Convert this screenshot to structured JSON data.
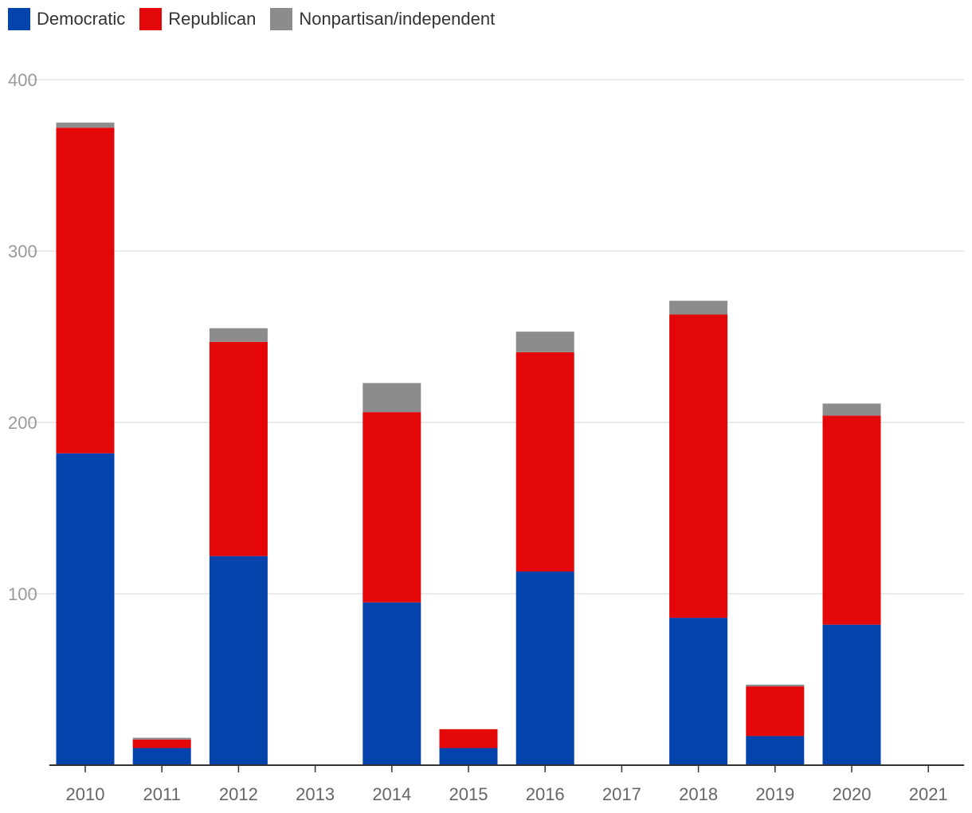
{
  "chart_data": {
    "type": "bar",
    "stacked": true,
    "categories": [
      "2010",
      "2011",
      "2012",
      "2013",
      "2014",
      "2015",
      "2016",
      "2017",
      "2018",
      "2019",
      "2020",
      "2021"
    ],
    "series": [
      {
        "name": "Democratic",
        "color": "#0443ac",
        "values": [
          182,
          10,
          122,
          0,
          95,
          10,
          113,
          0,
          86,
          17,
          82,
          0
        ]
      },
      {
        "name": "Republican",
        "color": "#e3070a",
        "values": [
          190,
          5,
          125,
          0,
          111,
          11,
          128,
          0,
          177,
          29,
          122,
          0
        ]
      },
      {
        "name": "Nonpartisan/independent",
        "color": "#8c8c8c",
        "values": [
          3,
          1,
          8,
          0,
          17,
          0,
          12,
          0,
          8,
          1,
          7,
          0
        ]
      }
    ],
    "yticks": [
      100,
      200,
      300,
      400
    ],
    "ylim": [
      0,
      400
    ],
    "grid": true,
    "legend": "top-left"
  }
}
